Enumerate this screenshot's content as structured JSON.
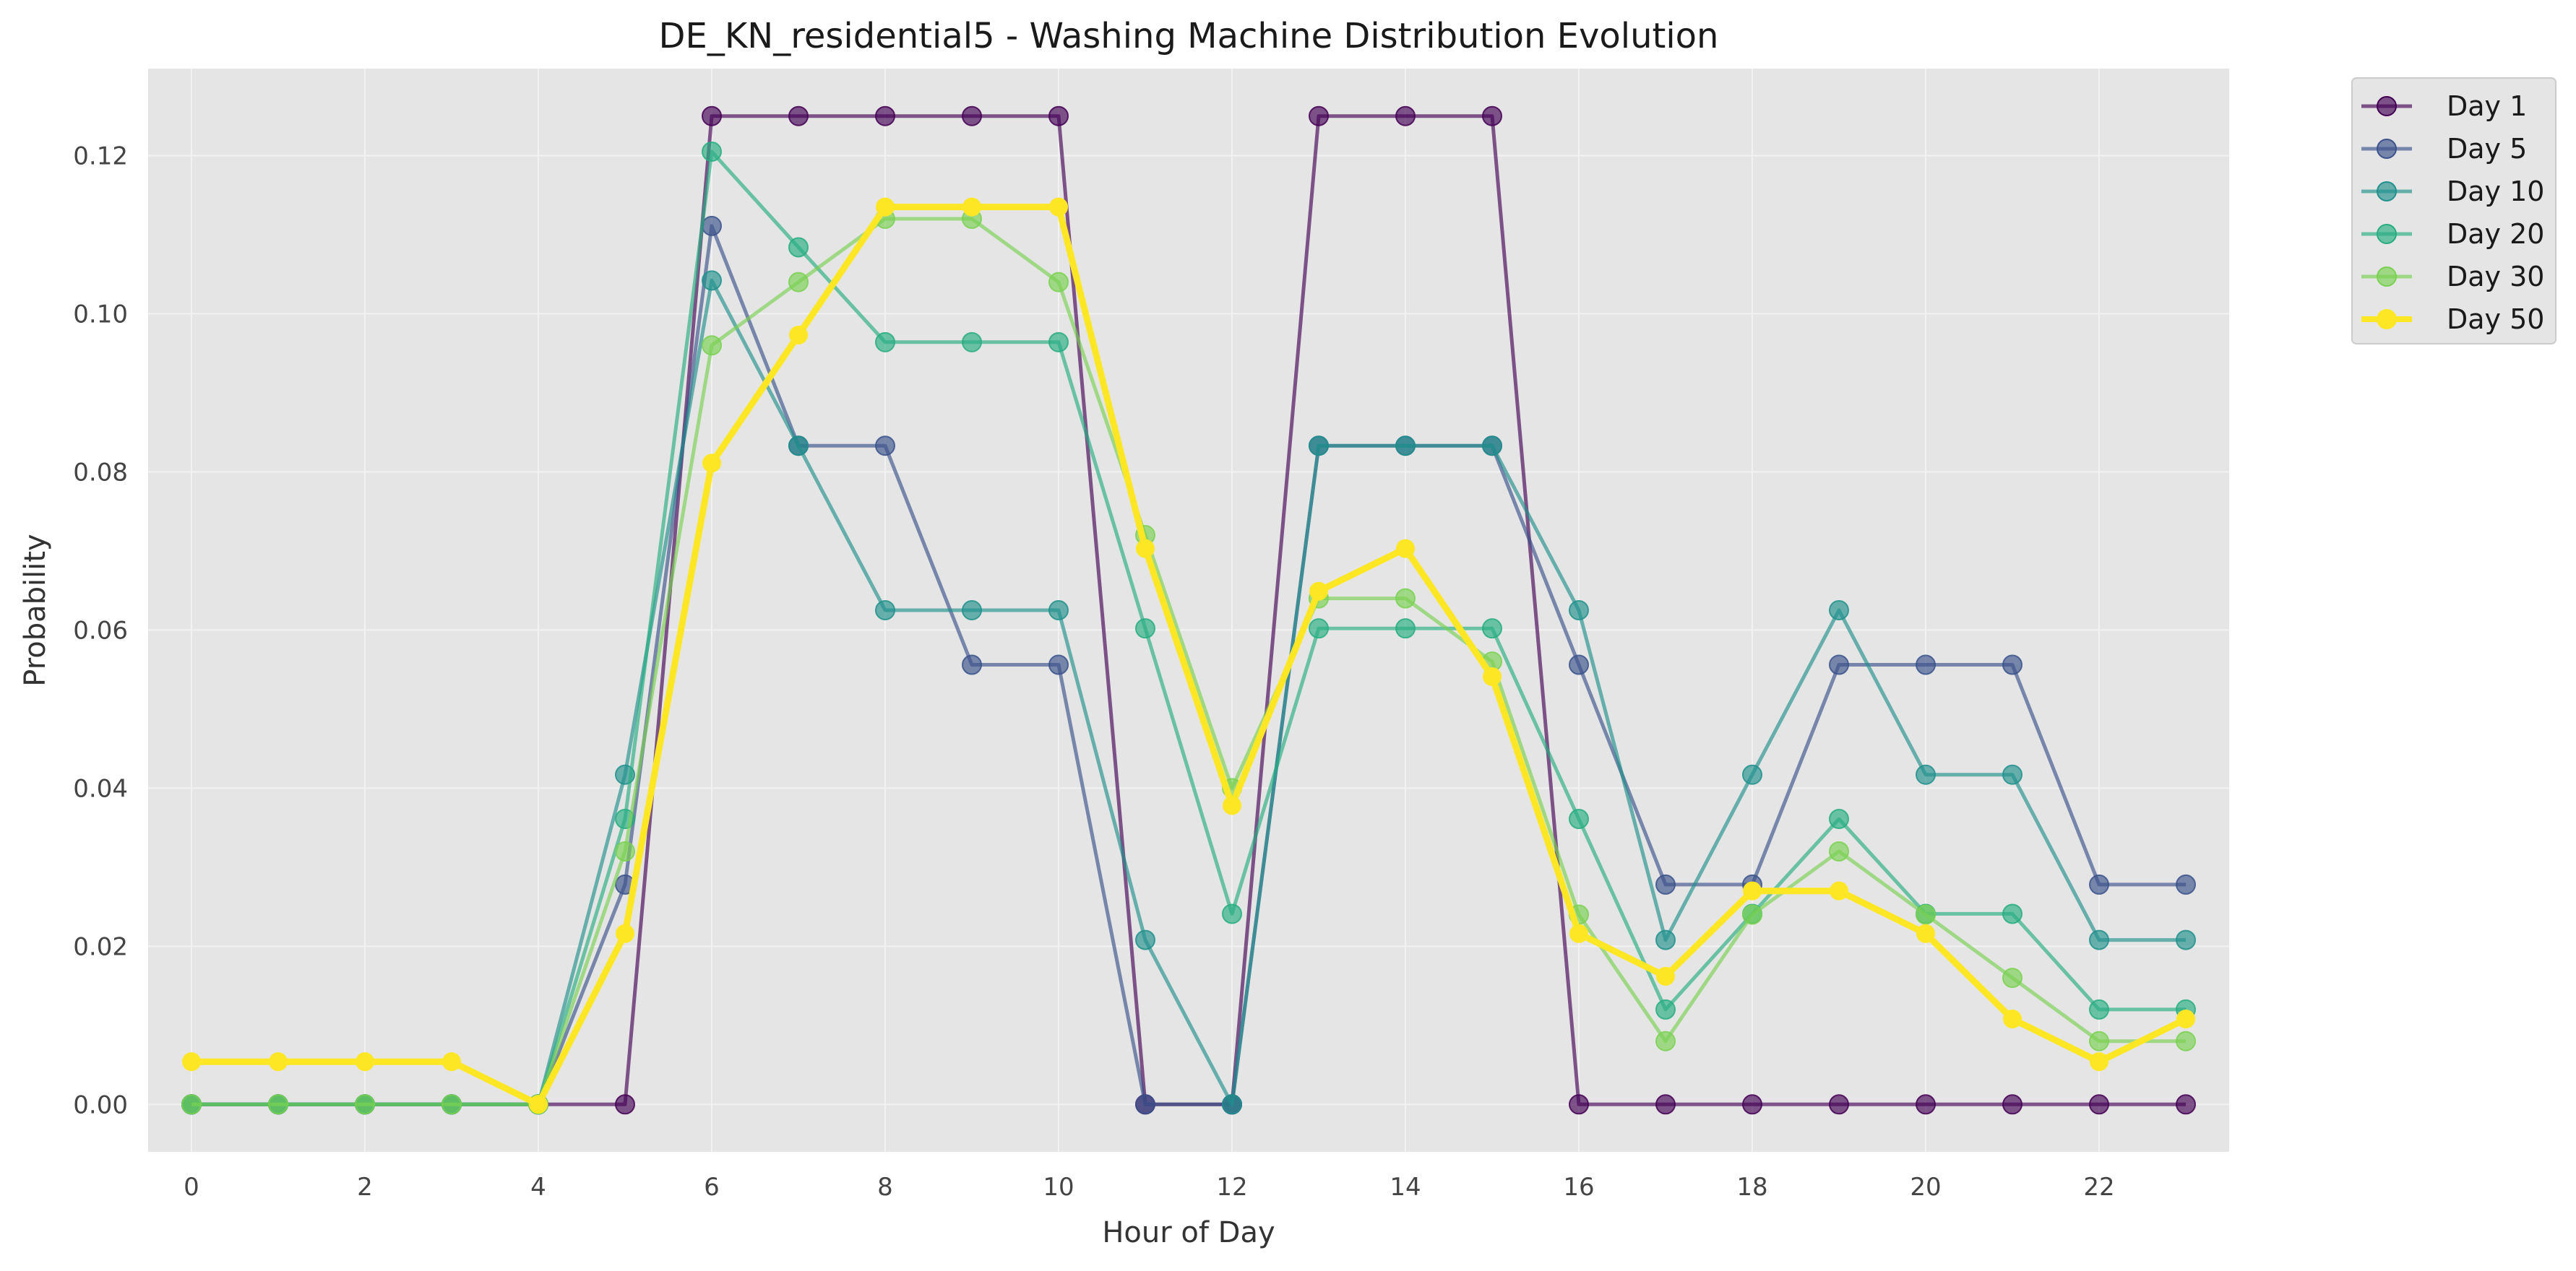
{
  "chart_data": {
    "type": "line",
    "title": "DE_KN_residential5 - Washing Machine Distribution Evolution",
    "xlabel": "Hour of Day",
    "ylabel": "Probability",
    "xlim": [
      -0.5,
      23.5
    ],
    "ylim": [
      -0.006,
      0.131
    ],
    "xticks": [
      0,
      2,
      4,
      6,
      8,
      10,
      12,
      14,
      16,
      18,
      20,
      22
    ],
    "xtick_labels": [
      "0",
      "2",
      "4",
      "6",
      "8",
      "10",
      "12",
      "14",
      "16",
      "18",
      "20",
      "22"
    ],
    "yticks": [
      0.0,
      0.02,
      0.04,
      0.06,
      0.08,
      0.1,
      0.12
    ],
    "ytick_labels": [
      "0.00",
      "0.02",
      "0.04",
      "0.06",
      "0.08",
      "0.10",
      "0.12"
    ],
    "grid": true,
    "legend_position": "outside-top-right",
    "x": [
      0,
      1,
      2,
      3,
      4,
      5,
      6,
      7,
      8,
      9,
      10,
      11,
      12,
      13,
      14,
      15,
      16,
      17,
      18,
      19,
      20,
      21,
      22,
      23
    ],
    "series": [
      {
        "name": "Day 1",
        "color": "#440154",
        "highlight": false,
        "values": [
          0,
          0,
          0,
          0,
          0,
          0,
          0.125,
          0.125,
          0.125,
          0.125,
          0.125,
          0,
          0,
          0.125,
          0.125,
          0.125,
          0,
          0,
          0,
          0,
          0,
          0,
          0,
          0
        ]
      },
      {
        "name": "Day 5",
        "color": "#3b528b",
        "highlight": false,
        "values": [
          0,
          0,
          0,
          0,
          0,
          0.0278,
          0.1111,
          0.0833,
          0.0833,
          0.0556,
          0.0556,
          0,
          0,
          0.0833,
          0.0833,
          0.0833,
          0.0556,
          0.0278,
          0.0278,
          0.0556,
          0.0556,
          0.0556,
          0.0278,
          0.0278
        ]
      },
      {
        "name": "Day 10",
        "color": "#21918c",
        "highlight": false,
        "values": [
          0,
          0,
          0,
          0,
          0,
          0.0417,
          0.1042,
          0.0833,
          0.0625,
          0.0625,
          0.0625,
          0.0208,
          0,
          0.0833,
          0.0833,
          0.0833,
          0.0625,
          0.0208,
          0.0417,
          0.0625,
          0.0417,
          0.0417,
          0.0208,
          0.0208
        ]
      },
      {
        "name": "Day 20",
        "color": "#27ad81",
        "highlight": false,
        "values": [
          0,
          0,
          0,
          0,
          0,
          0.0361,
          0.1205,
          0.1084,
          0.0964,
          0.0964,
          0.0964,
          0.0602,
          0.0241,
          0.0602,
          0.0602,
          0.0602,
          0.0361,
          0.012,
          0.0241,
          0.0361,
          0.0241,
          0.0241,
          0.012,
          0.012
        ]
      },
      {
        "name": "Day 30",
        "color": "#7ad151",
        "highlight": false,
        "values": [
          0,
          0,
          0,
          0,
          0,
          0.032,
          0.096,
          0.104,
          0.112,
          0.112,
          0.104,
          0.072,
          0.04,
          0.064,
          0.064,
          0.056,
          0.024,
          0.008,
          0.024,
          0.032,
          0.024,
          0.016,
          0.008,
          0.008
        ]
      },
      {
        "name": "Day 50",
        "color": "#fde725",
        "highlight": true,
        "values": [
          0.0054,
          0.0054,
          0.0054,
          0.0054,
          0,
          0.0216,
          0.0811,
          0.0973,
          0.1135,
          0.1135,
          0.1135,
          0.0703,
          0.0378,
          0.0649,
          0.0703,
          0.0541,
          0.0216,
          0.0162,
          0.027,
          0.027,
          0.0216,
          0.0108,
          0.0054,
          0.0108
        ]
      }
    ]
  }
}
